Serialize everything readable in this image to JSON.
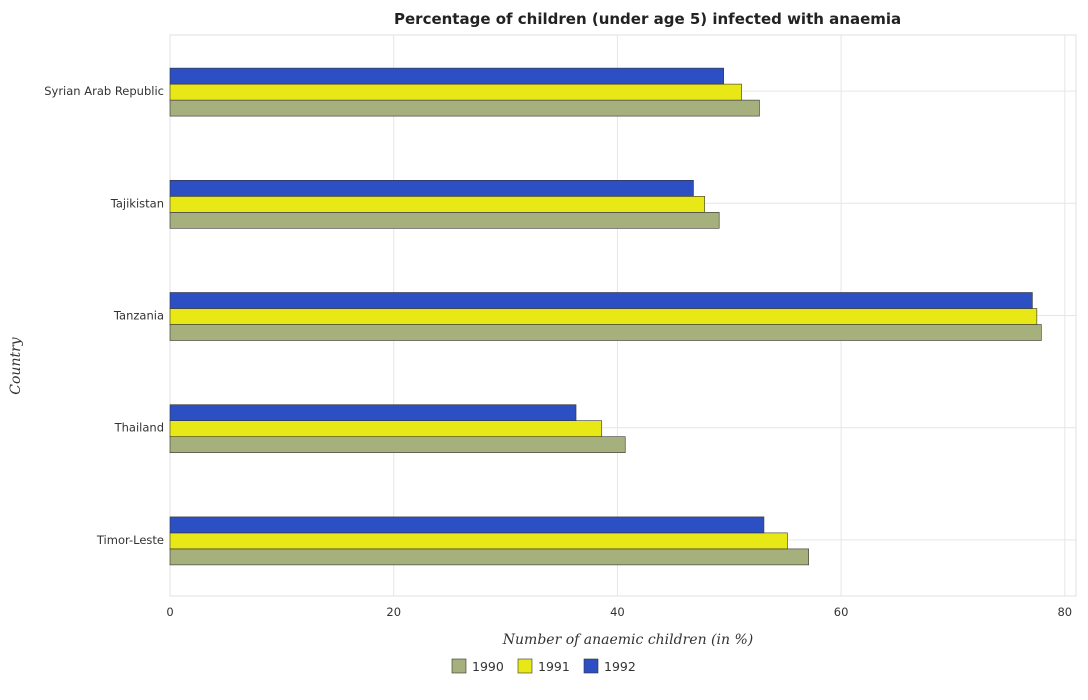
{
  "chart_data": {
    "type": "bar",
    "orientation": "horizontal",
    "title": "Percentage of children (under age 5) infected with anaemia",
    "xlabel": "Number of anaemic children (in %)",
    "ylabel": "Country",
    "xlim": [
      0,
      81
    ],
    "xticks": [
      0,
      20,
      40,
      60,
      80
    ],
    "grid": true,
    "legend_position": "bottom-center",
    "categories": [
      "Syrian Arab Republic",
      "Tajikistan",
      "Tanzania",
      "Thailand",
      "Timor-Leste"
    ],
    "series": [
      {
        "name": "1990",
        "color": "#a5b07c",
        "values": [
          52.7,
          49.1,
          77.9,
          40.7,
          57.1
        ]
      },
      {
        "name": "1991",
        "color": "#e8e817",
        "values": [
          51.1,
          47.8,
          77.5,
          38.6,
          55.2
        ]
      },
      {
        "name": "1992",
        "color": "#2c4fc4",
        "values": [
          49.5,
          46.8,
          77.1,
          36.3,
          53.1
        ]
      }
    ]
  }
}
